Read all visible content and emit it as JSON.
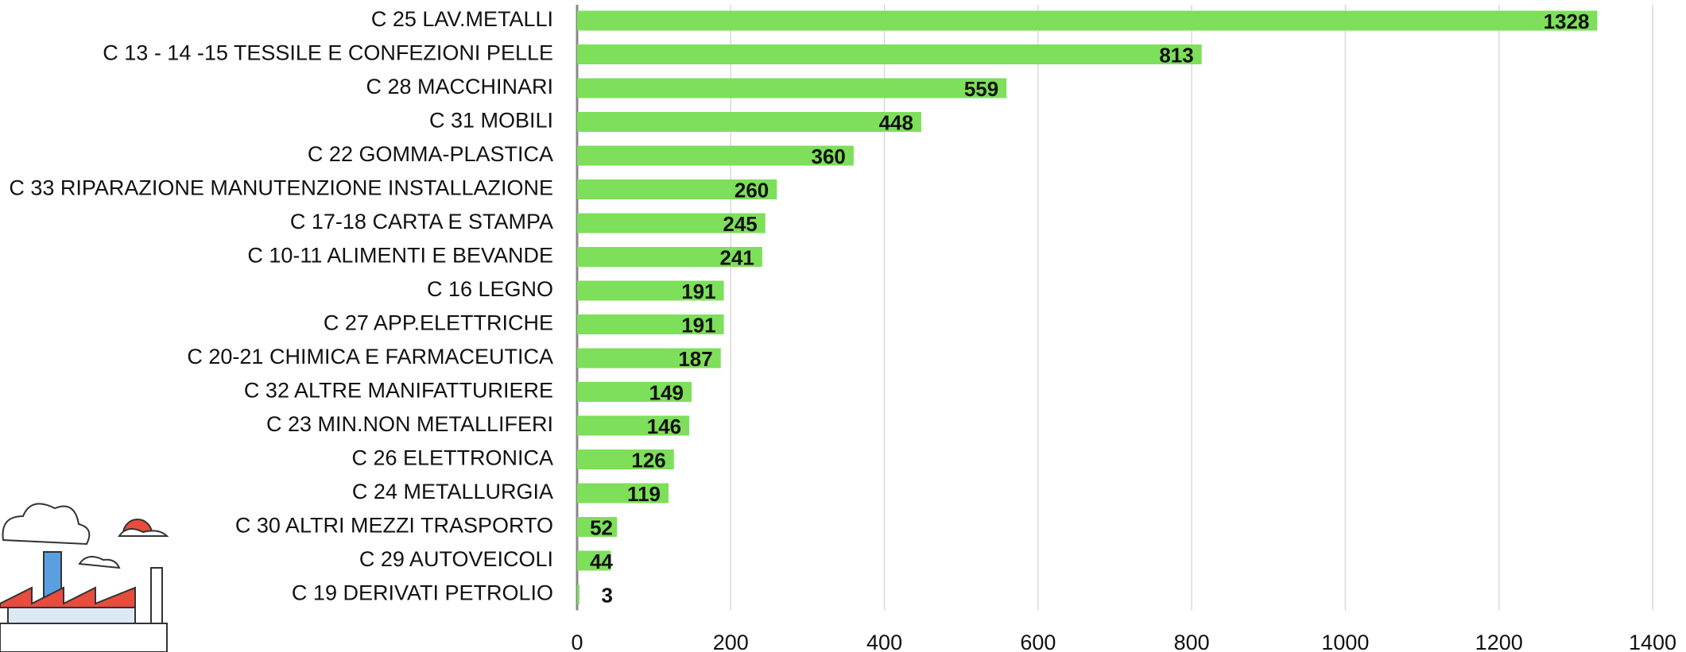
{
  "chart_data": {
    "type": "bar",
    "orientation": "horizontal",
    "categories": [
      "C 25 LAV.METALLI",
      "C 13 - 14 -15 TESSILE E CONFEZIONI PELLE",
      "C 28 MACCHINARI",
      "C 31 MOBILI",
      "C 22 GOMMA-PLASTICA",
      "C 33 RIPARAZIONE MANUTENZIONE INSTALLAZIONE",
      "C 17-18 CARTA E STAMPA",
      "C 10-11 ALIMENTI E BEVANDE",
      "C 16 LEGNO",
      "C 27 APP.ELETTRICHE",
      "C 20-21 CHIMICA E FARMACEUTICA",
      "C 32 ALTRE MANIFATTURIERE",
      "C 23 MIN.NON METALLIFERI",
      "C 26 ELETTRONICA",
      "C 24 METALLURGIA",
      "C 30 ALTRI MEZZI TRASPORTO",
      "C 29 AUTOVEICOLI",
      "C 19 DERIVATI PETROLIO"
    ],
    "values": [
      1328,
      813,
      559,
      448,
      360,
      260,
      245,
      241,
      191,
      191,
      187,
      149,
      146,
      126,
      119,
      52,
      44,
      3
    ],
    "color": "#7ddf5a",
    "xlim": [
      0,
      1400
    ],
    "xticks": [
      0,
      200,
      400,
      600,
      800,
      1000,
      1200,
      1400
    ],
    "grid": true
  }
}
